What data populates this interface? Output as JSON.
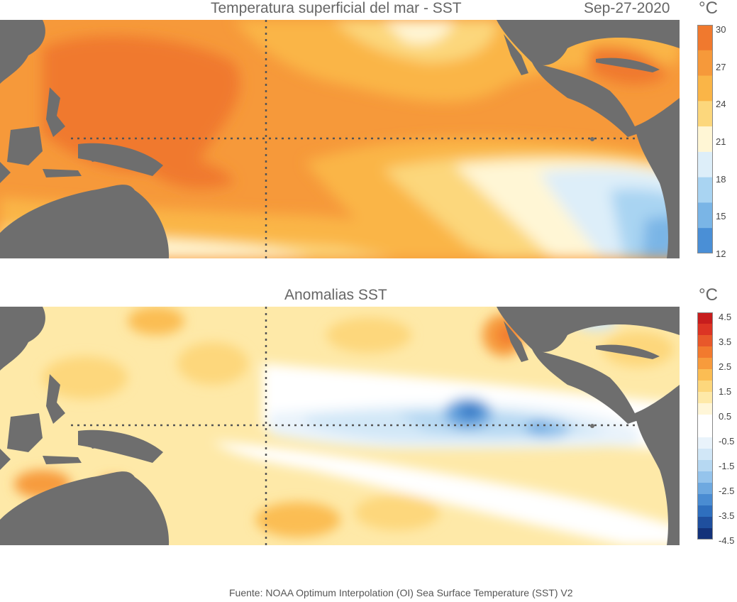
{
  "top_panel": {
    "title": "Temperatura superficial del mar - SST",
    "date": "Sep-27-2020",
    "unit": "°C",
    "colorbar": {
      "ticks": [
        "30",
        "27",
        "24",
        "21",
        "18",
        "15",
        "12"
      ],
      "colors": [
        "#f0792e",
        "#f6993a",
        "#fab547",
        "#fcd77c",
        "#fff6d5",
        "#ddeef9",
        "#a9d4f2",
        "#7ab5e6",
        "#4a8fd6"
      ]
    }
  },
  "bottom_panel": {
    "title": "Anomalias SST",
    "unit": "°C",
    "colorbar": {
      "ticks": [
        "4.5",
        "3.5",
        "2.5",
        "1.5",
        "0.5",
        "-0.5",
        "-1.5",
        "-2.5",
        "-3.5",
        "-4.5"
      ],
      "colors": [
        "#c71d1d",
        "#dc3424",
        "#e8582a",
        "#f27a2e",
        "#f79b3c",
        "#fbbd53",
        "#fdd77c",
        "#fee9a8",
        "#fff6d8",
        "#ffffff",
        "#ffffff",
        "#e9f3fb",
        "#d1e7f7",
        "#b6d8f2",
        "#95c4ec",
        "#6ea9e0",
        "#4a8cd2",
        "#2f6fbe",
        "#1f4f9e",
        "#13327a"
      ]
    }
  },
  "colors": {
    "land": "#6e6e6e",
    "grid_line": "#555555"
  },
  "footer": "Fuente: NOAA Optimum Interpolation (OI) Sea Surface Temperature (SST) V2"
}
